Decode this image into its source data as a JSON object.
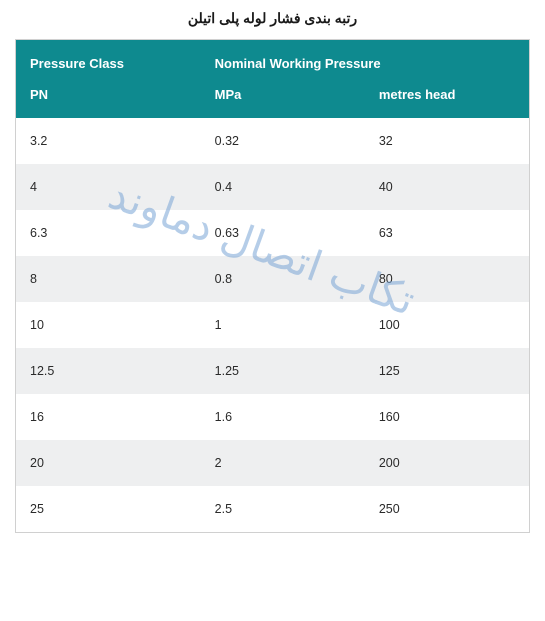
{
  "title": "رتبه بندی فشار لوله پلی اتیلن",
  "watermark": "تکاب اتصال دماوند",
  "headers": {
    "group1": "Pressure Class",
    "group2": "Nominal Working Pressure",
    "sub1": "PN",
    "sub2": "MPa",
    "sub3": "metres head"
  },
  "colors": {
    "header_bg": "#0e8a8f",
    "header_fg": "#ffffff",
    "row_odd": "#ffffff",
    "row_even": "#eeeff0",
    "text": "#2a2a2a",
    "watermark": "#7aa6d6",
    "border": "#d0d0d0"
  },
  "rows": [
    {
      "pn": "3.2",
      "mpa": "0.32",
      "m": "32"
    },
    {
      "pn": "4",
      "mpa": "0.4",
      "m": "40"
    },
    {
      "pn": "6.3",
      "mpa": "0.63",
      "m": "63"
    },
    {
      "pn": "8",
      "mpa": "0.8",
      "m": "80"
    },
    {
      "pn": "10",
      "mpa": "1",
      "m": "100"
    },
    {
      "pn": "12.5",
      "mpa": "1.25",
      "m": "125"
    },
    {
      "pn": "16",
      "mpa": "1.6",
      "m": "160"
    },
    {
      "pn": "20",
      "mpa": "2",
      "m": "200"
    },
    {
      "pn": "25",
      "mpa": "2.5",
      "m": "250"
    }
  ],
  "col_widths": [
    "36%",
    "32%",
    "32%"
  ]
}
